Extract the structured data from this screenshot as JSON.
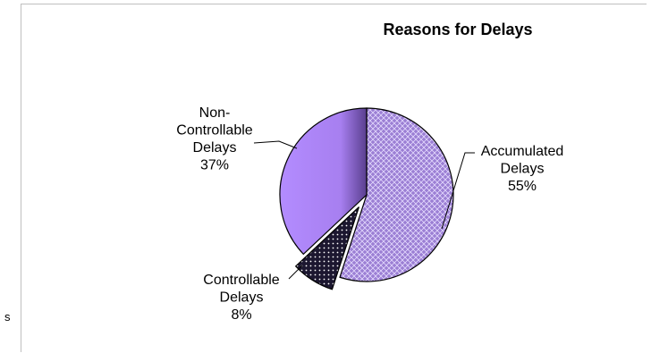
{
  "edge_fragment": "s",
  "chart_data": {
    "type": "pie",
    "title": "Reasons for Delays",
    "slices": [
      {
        "label_lines": [
          "Accumulated",
          "Delays",
          "55%"
        ],
        "value": 55,
        "exploded": false
      },
      {
        "label_lines": [
          "Controllable",
          "Delays",
          "8%"
        ],
        "value": 8,
        "exploded": true
      },
      {
        "label_lines": [
          "Non-",
          "Controllable",
          "Delays",
          "37%"
        ],
        "value": 37,
        "exploded": false
      }
    ],
    "colors": {
      "accumulated": "#9b7fd4",
      "controllable": "#1a1a2e",
      "non_controllable": "#a77ff0",
      "outline": "#000000"
    },
    "legend": "none"
  }
}
